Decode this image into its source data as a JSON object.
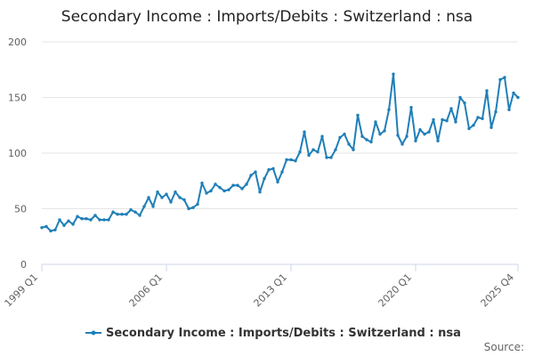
{
  "chart_data": {
    "type": "line",
    "title": "Secondary Income : Imports/Debits : Switzerland : nsa",
    "xlabel": "",
    "ylabel": "",
    "ylim": [
      0,
      200
    ],
    "yticks": [
      "0",
      "50",
      "100",
      "150",
      "200"
    ],
    "xticks": [
      {
        "label": "1999 Q1",
        "index": 0
      },
      {
        "label": "2006 Q1",
        "index": 28
      },
      {
        "label": "2013 Q1",
        "index": 56
      },
      {
        "label": "2020 Q1",
        "index": 84
      },
      {
        "label": "2025 Q4",
        "index": 107
      }
    ],
    "grid": true,
    "legend": "bottom",
    "colors": {
      "series": "#1f7fb8",
      "grid": "#e6e6e6",
      "axis": "#ccd6eb"
    },
    "series": [
      {
        "name": "Secondary Income : Imports/Debits : Switzerland : nsa",
        "values": [
          33,
          34,
          30,
          31,
          40,
          35,
          39,
          36,
          43,
          41,
          41,
          40,
          44,
          40,
          40,
          40,
          47,
          45,
          45,
          45,
          49,
          47,
          44,
          52,
          60,
          52,
          65,
          60,
          63,
          56,
          65,
          60,
          58,
          50,
          51,
          54,
          73,
          64,
          66,
          72,
          69,
          66,
          67,
          71,
          71,
          68,
          72,
          80,
          83,
          65,
          77,
          85,
          86,
          74,
          83,
          94,
          94,
          93,
          101,
          119,
          98,
          103,
          101,
          115,
          96,
          96,
          103,
          114,
          117,
          108,
          103,
          134,
          115,
          112,
          110,
          128,
          117,
          120,
          139,
          171,
          116,
          108,
          115,
          141,
          111,
          121,
          117,
          119,
          130,
          111,
          130,
          129,
          140,
          128,
          150,
          145,
          122,
          125,
          132,
          131,
          156,
          123,
          137,
          166,
          168,
          139,
          154,
          150
        ]
      }
    ]
  },
  "source_label": "Source:"
}
